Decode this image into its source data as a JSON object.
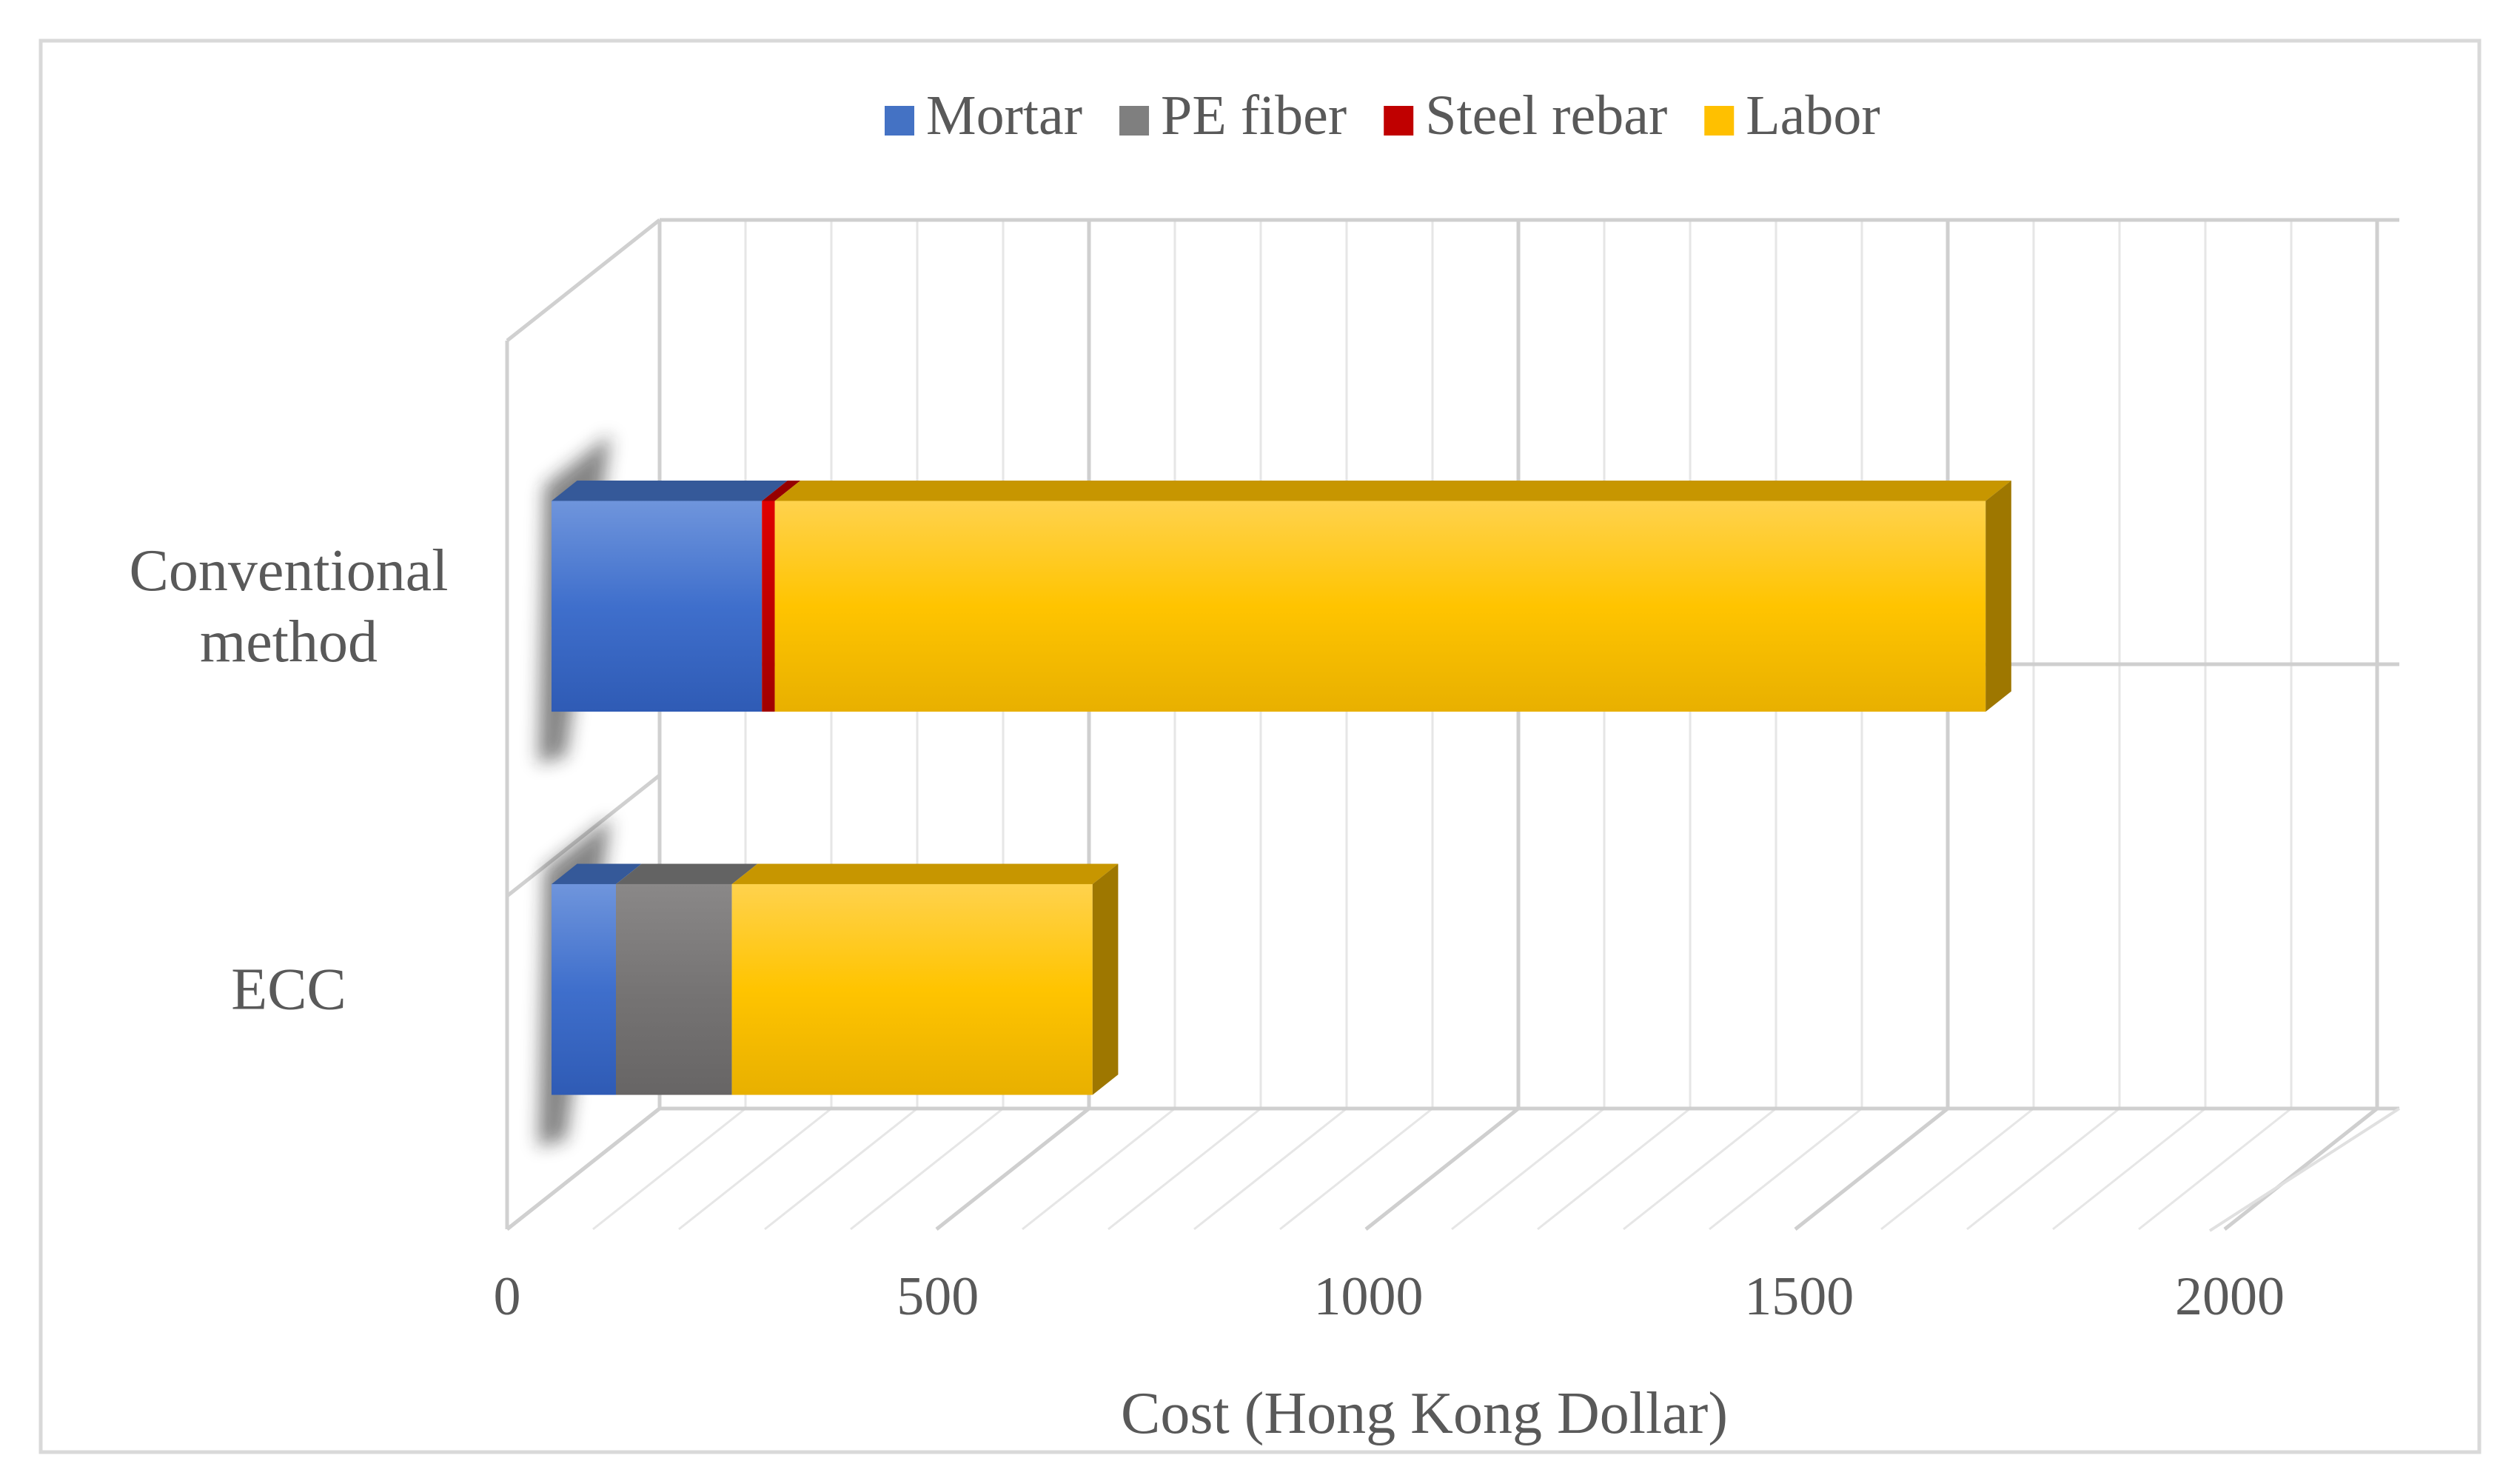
{
  "chart_data": {
    "type": "bar",
    "orientation": "horizontal",
    "stacked": true,
    "style_3d": true,
    "categories": [
      "Conventional method",
      "ECC"
    ],
    "category_lines": [
      [
        "Conventional",
        "method"
      ],
      [
        "ECC"
      ]
    ],
    "series": [
      {
        "name": "Mortar",
        "values": [
          245,
          75
        ],
        "color": "#4472C4"
      },
      {
        "name": "PE fiber",
        "values": [
          0,
          135
        ],
        "color": "#7F7F7F"
      },
      {
        "name": "Steel rebar",
        "values": [
          15,
          0
        ],
        "color": "#C00000"
      },
      {
        "name": "Labor",
        "values": [
          1410,
          420
        ],
        "color": "#FFC000"
      }
    ],
    "xlabel": "Cost (Hong Kong Dollar)",
    "ylabel": "",
    "xlim": [
      0,
      2000
    ],
    "x_ticks": [
      0,
      500,
      1000,
      1500,
      2000
    ],
    "x_tick_labels": [
      "0",
      "500",
      "1000",
      "1500",
      "2000"
    ],
    "grid": true,
    "legend_position": "top"
  }
}
